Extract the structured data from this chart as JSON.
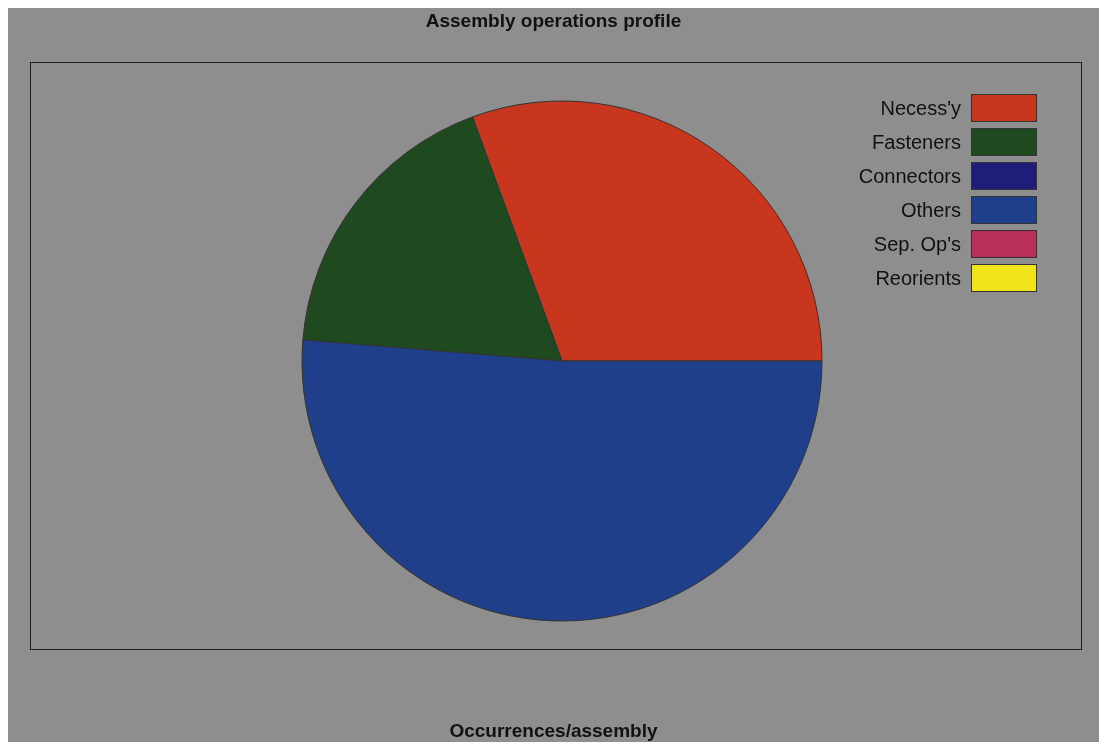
{
  "chart_data": {
    "type": "pie",
    "title": "Assembly operations profile",
    "xlabel": "Occurrences/assembly",
    "categories": [
      "Necess'y",
      "Fasteners",
      "Connectors",
      "Others",
      "Sep. Op's",
      "Reorients"
    ],
    "values": [
      30.6,
      18.1,
      0,
      51.3,
      0,
      0
    ],
    "colors": [
      "#c8361e",
      "#1f4a1f",
      "#1e1e7a",
      "#1f3f8a",
      "#b8305a",
      "#f2e41a"
    ],
    "legend": "top right"
  }
}
